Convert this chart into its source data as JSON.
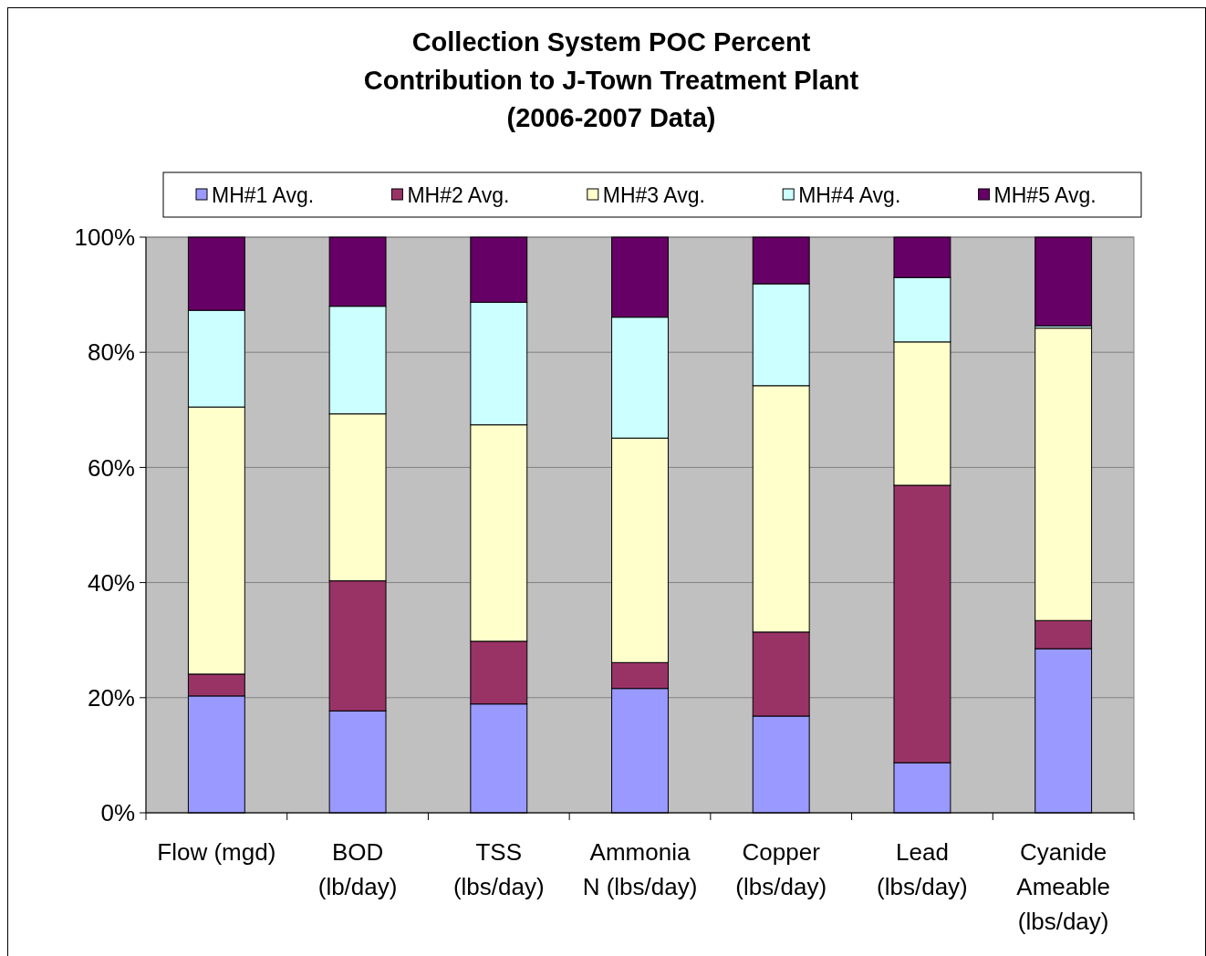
{
  "chart_data": {
    "type": "bar",
    "stacked": true,
    "title": "Collection System POC Percent\nContribution to J-Town Treatment Plant\n(2006-2007 Data)",
    "categories": [
      "Flow (mgd)",
      "BOD\n(lb/day)",
      "TSS\n(lbs/day)",
      "Ammonia\nN (lbs/day)",
      "Copper\n(lbs/day)",
      "Lead\n(lbs/day)",
      "Cyanide\nAmeable\n(lbs/day)"
    ],
    "series": [
      {
        "name": "MH#1 Avg.",
        "color": "#9999ff",
        "values": [
          20.3,
          17.7,
          18.9,
          21.6,
          16.8,
          8.7,
          28.5
        ]
      },
      {
        "name": "MH#2 Avg.",
        "color": "#993366",
        "values": [
          3.8,
          22.6,
          10.9,
          4.5,
          14.6,
          48.2,
          4.9
        ]
      },
      {
        "name": "MH#3 Avg.",
        "color": "#ffffcc",
        "values": [
          46.4,
          29.0,
          37.6,
          39.0,
          42.8,
          24.9,
          50.8
        ]
      },
      {
        "name": "MH#4 Avg.",
        "color": "#ccffff",
        "values": [
          16.8,
          18.7,
          21.3,
          21.0,
          17.7,
          11.2,
          0.4
        ]
      },
      {
        "name": "MH#5 Avg.",
        "color": "#660066",
        "values": [
          12.7,
          12.0,
          11.3,
          13.9,
          8.1,
          7.0,
          15.4
        ]
      }
    ],
    "ylim": [
      0,
      100
    ],
    "yticks": [
      {
        "value": 0,
        "label": "0%"
      },
      {
        "value": 20,
        "label": "20%"
      },
      {
        "value": 40,
        "label": "40%"
      },
      {
        "value": 60,
        "label": "60%"
      },
      {
        "value": 80,
        "label": "80%"
      },
      {
        "value": 100,
        "label": "100%"
      }
    ],
    "grid": "y",
    "legend": "top"
  }
}
